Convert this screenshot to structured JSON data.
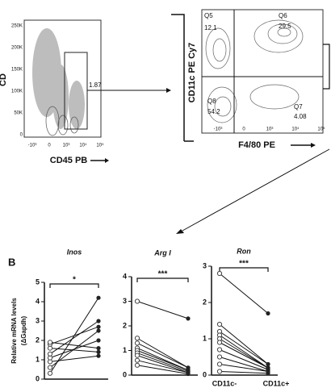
{
  "panel_a": {
    "plot1": {
      "gate_value": "1.87",
      "x_label": "CD45 PB",
      "y_label": "CD",
      "yticks": [
        "250K",
        "200K",
        "150K",
        "100K",
        "50K",
        "0"
      ],
      "xticks": [
        "-10³",
        "0",
        "10³",
        "10⁴",
        "10⁵"
      ]
    },
    "plot2": {
      "x_label": "F4/80 PE",
      "y_label": "CD11c PE Cy7",
      "xticks": [
        "-10³",
        "0",
        "10³",
        "10⁴",
        "10⁵"
      ],
      "quadrants": [
        {
          "name": "Q5",
          "value": "12.1"
        },
        {
          "name": "Q6",
          "value": "29.5"
        },
        {
          "name": "Q8",
          "value": "54.2"
        },
        {
          "name": "Q7",
          "value": "4.08"
        }
      ]
    }
  },
  "panel_b": {
    "label": "B",
    "y_label": [
      "Relative mRNA levels",
      "(ΔGapdh)"
    ],
    "x_categories": [
      "CD11c-",
      "CD11c+"
    ],
    "plots": [
      {
        "title": "Inos",
        "significance": "*",
        "ylim": [
          0,
          5
        ],
        "yticks": [
          0,
          1,
          2,
          3,
          4,
          5
        ],
        "left": [
          0.3,
          0.6,
          0.9,
          1.1,
          1.3,
          1.6,
          1.8,
          1.9
        ],
        "right": [
          4.2,
          2.5,
          1.2,
          2.0,
          3.0,
          1.4,
          2.7,
          1.6
        ]
      },
      {
        "title": "Arg I",
        "significance": "***",
        "ylim": [
          0,
          4
        ],
        "yticks": [
          0,
          1,
          2,
          3,
          4
        ],
        "left": [
          3.0,
          1.5,
          1.3,
          1.1,
          1.0,
          0.9,
          0.8,
          0.6,
          0.4
        ],
        "right": [
          2.3,
          0.3,
          0.3,
          0.2,
          0.2,
          0.15,
          0.1,
          0.1,
          0.05
        ]
      },
      {
        "title": "Ron",
        "significance": "***",
        "ylim": [
          0,
          3
        ],
        "yticks": [
          0,
          1,
          2,
          3
        ],
        "left": [
          2.8,
          1.4,
          1.2,
          1.1,
          1.0,
          0.9,
          0.7,
          0.5,
          0.3,
          0.1
        ],
        "right": [
          1.7,
          0.3,
          0.3,
          0.2,
          0.2,
          0.2,
          0.15,
          0.1,
          0.1,
          0.05
        ]
      }
    ]
  }
}
